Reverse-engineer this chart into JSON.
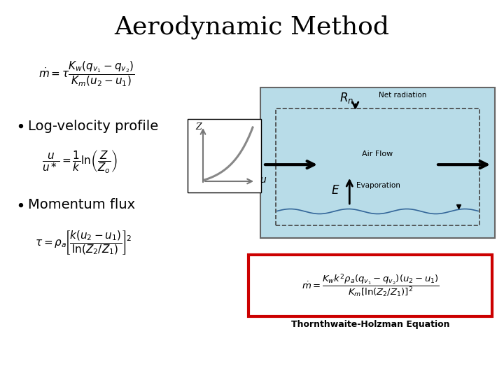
{
  "title": "Aerodynamic Method",
  "title_fontsize": 26,
  "title_fontweight": "normal",
  "background_color": "#ffffff",
  "box_color": "#b8dce8",
  "box_border": "#555555",
  "red_box_color": "#cc0000",
  "bullet1": "Log-velocity profile",
  "bullet2": "Momentum flux",
  "thornthwaite": "Thornthwaite-Holzman Equation",
  "net_radiation_label": "Net radiation",
  "air_flow_label": "Air Flow",
  "evaporation_label": "Evaporation",
  "Rn_label": "$R_n$",
  "E_label": "$E$",
  "eq1": "$\\dot{m} = \\tau \\dfrac{K_w\\left(q_{v_1}-q_{v_2}\\right)}{K_m\\left(u_2-u_1\\right)}$",
  "eq2": "$\\dfrac{u}{u*} = \\dfrac{1}{k}\\ln\\!\\left(\\dfrac{Z}{Z_o}\\right)$",
  "eq3": "$\\tau = \\rho_a\\!\\left[\\dfrac{k(u_2-u_1)}{\\ln(Z_2/Z_1)}\\right]^{\\!2}$",
  "eq4": "$\\dot{m} = \\dfrac{K_w k^2 \\rho_a \\left(q_{v_1}-q_{v_2}\\right)\\left(u_2-u_1\\right)}{K_m\\left[\\ln(Z_2/Z_1)\\right]^2}$"
}
